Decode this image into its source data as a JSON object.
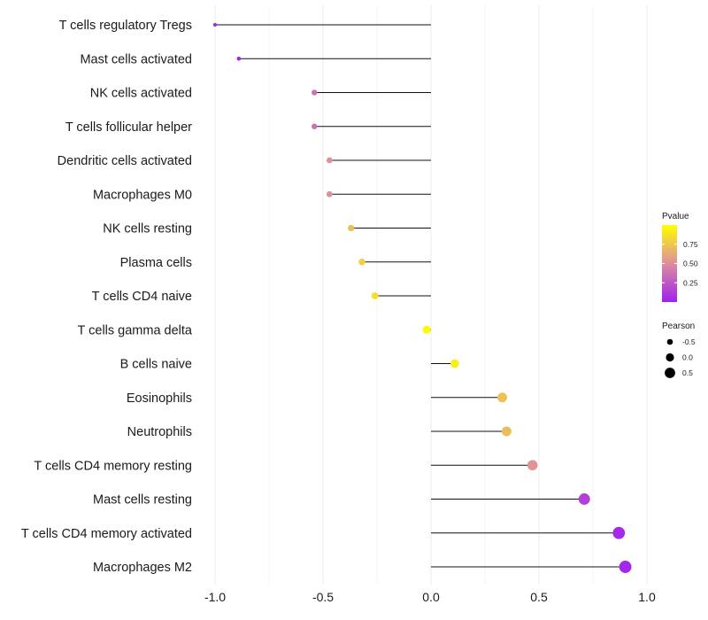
{
  "chart_data": {
    "type": "lollipop",
    "title": "",
    "xlabel": "",
    "ylabel": "",
    "xlim": [
      -1.0,
      1.0
    ],
    "xticks": [
      -1.0,
      -0.5,
      0.0,
      0.5,
      1.0
    ],
    "xtick_labels": [
      "-1.0",
      "-0.5",
      "0.0",
      "0.5",
      "1.0"
    ],
    "baseline": 0.0,
    "categories": [
      "T cells regulatory  Tregs",
      "Mast cells activated",
      "NK cells activated",
      "T cells follicular helper",
      "Dendritic cells activated",
      "Macrophages M0",
      "NK cells resting",
      "Plasma cells",
      "T cells CD4 naive",
      "T cells gamma delta",
      "B cells naive",
      "Eosinophils",
      "Neutrophils",
      "T cells CD4 memory resting",
      "Mast cells resting",
      "T cells CD4 memory activated",
      "Macrophages M2"
    ],
    "pearson": [
      -1.0,
      -0.89,
      -0.54,
      -0.54,
      -0.47,
      -0.47,
      -0.37,
      -0.32,
      -0.26,
      -0.02,
      0.11,
      0.33,
      0.35,
      0.47,
      0.71,
      0.87,
      0.9
    ],
    "pvalue": [
      0.01,
      0.02,
      0.38,
      0.38,
      0.52,
      0.52,
      0.72,
      0.79,
      0.86,
      0.98,
      0.92,
      0.73,
      0.71,
      0.53,
      0.14,
      0.04,
      0.03
    ],
    "legend_color": {
      "title": "Pvalue",
      "ticks": [
        0.25,
        0.5,
        0.75
      ],
      "tick_labels": [
        "0.25",
        "0.50",
        "0.75"
      ],
      "range": [
        0.0,
        1.0
      ],
      "low_color": "#a020f0",
      "mid_color": "#dd8e9e",
      "high_color": "#ffff00"
    },
    "legend_size": {
      "title": "Pearson",
      "values": [
        -0.5,
        0.0,
        0.5
      ],
      "labels": [
        "-0.5",
        "0.0",
        "0.5"
      ]
    },
    "grid": true,
    "legend_position": "right"
  }
}
